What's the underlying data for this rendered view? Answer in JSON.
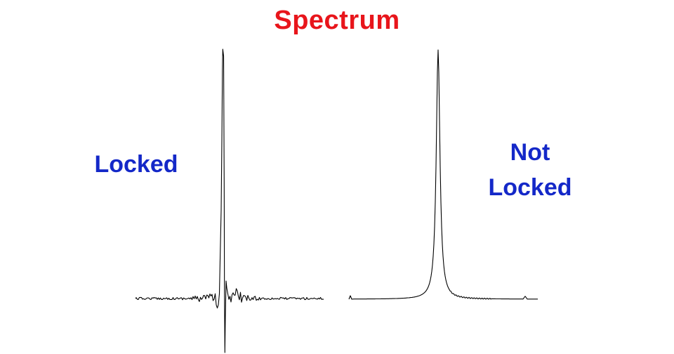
{
  "title": "Spectrum",
  "colors": {
    "title": "#e8151b",
    "labels": "#1428c8",
    "trace": "#000000",
    "background": "#ffffff"
  },
  "panels": [
    {
      "label_lines": [
        "Locked"
      ],
      "trace": "noisy-dispersive-line"
    },
    {
      "label_lines": [
        "Not",
        "Locked"
      ],
      "trace": "narrow-peak"
    }
  ]
}
